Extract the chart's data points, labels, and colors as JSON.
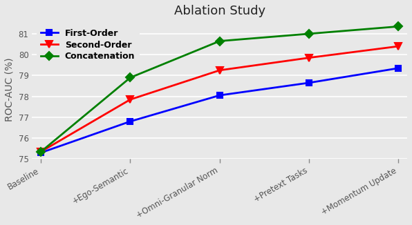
{
  "title": "Ablation Study",
  "ylabel": "ROC-AUC (%)",
  "x_labels": [
    "Baseline",
    "+Ego-Semantic",
    "+Omni-Granular Norm",
    "+Pretext Tasks",
    "+Momentum Update"
  ],
  "series": [
    {
      "label": "First-Order",
      "color": "#0000ff",
      "marker": "s",
      "marker_size": 6,
      "marker_fc": "#0000ff",
      "marker_ec": "#0000ff",
      "values": [
        75.3,
        76.8,
        78.05,
        78.65,
        79.35
      ]
    },
    {
      "label": "Second-Order",
      "color": "#ff0000",
      "marker": "v",
      "marker_size": 7,
      "marker_fc": "#ff0000",
      "marker_ec": "#ff0000",
      "values": [
        75.35,
        77.85,
        79.25,
        79.85,
        80.4
      ]
    },
    {
      "label": "Concatenation",
      "color": "#008000",
      "marker": "D",
      "marker_size": 6,
      "marker_fc": "#008000",
      "marker_ec": "#008000",
      "values": [
        75.35,
        78.9,
        80.65,
        81.0,
        81.35
      ]
    }
  ],
  "ylim": [
    75.0,
    81.65
  ],
  "yticks": [
    75,
    76,
    77,
    78,
    79,
    80,
    81
  ],
  "plot_bg_color": "#e8e8e8",
  "fig_bg_color": "#e8e8e8",
  "grid_color": "#ffffff",
  "title_fontsize": 13,
  "axis_label_fontsize": 10,
  "tick_fontsize": 8.5,
  "legend_fontsize": 9,
  "linewidth": 2.0,
  "tick_label_color": "#555555",
  "title_color": "#222222"
}
